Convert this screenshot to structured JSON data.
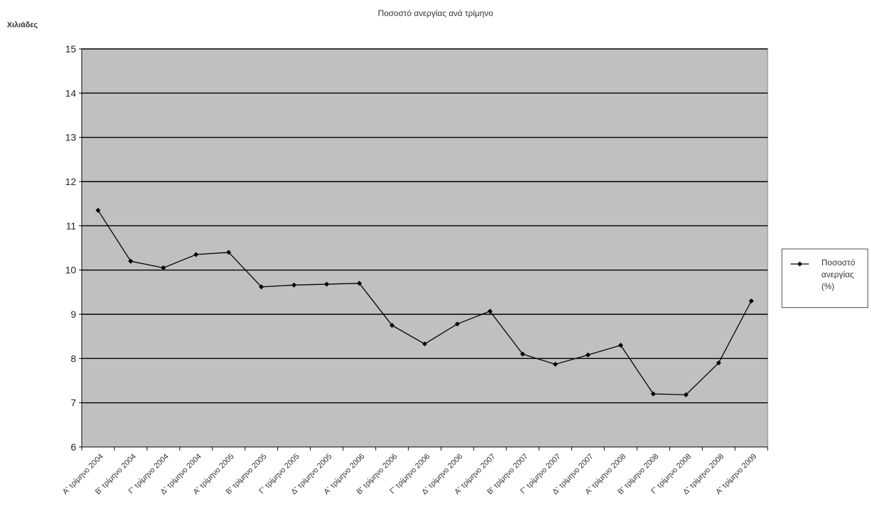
{
  "chart_data": {
    "type": "line",
    "title": "Ποσοστό ανεργίας ανά τρίμηνο",
    "ylabel": "Χιλιάδες",
    "xlabel": "",
    "ylim": [
      6,
      15
    ],
    "yticks": [
      6,
      7,
      8,
      9,
      10,
      11,
      12,
      13,
      14,
      15
    ],
    "grid": true,
    "legend_position": "right",
    "colors": {
      "plot_background": "#c0c0c0",
      "gridline": "#000000",
      "series_line": "#000000"
    },
    "categories": [
      "Α' τρίμηνο 2004",
      "Β' τρίμηνο 2004",
      "Γ' τρίμηνο 2004",
      "Δ' τρίμηνο 2004",
      "Α' τρίμηνο 2005",
      "Β' τρίμηνο 2005",
      "Γ' τρίμηνο 2005",
      "Δ' τρίμηνο 2005",
      "Α' τρίμηνο 2006",
      "Β' τρίμηνο 2006",
      "Γ' τρίμηνο 2006",
      "Δ' τρίμηνο 2006",
      "Α' τρίμηνο 2007",
      "Β' τρίμηνο 2007",
      "Γ' τρίμηνο 2007",
      "Δ' τρίμηνο 2007",
      "Α' τρίμηνο 2008",
      "Β' τρίμηνο 2008",
      "Γ' τρίμηνο 2008",
      "Δ' τρίμηνο 2008",
      "Α' τρίμηνο 2009"
    ],
    "series": [
      {
        "name": "Ποσοστό ανεργίας (%)",
        "values": [
          11.35,
          10.2,
          10.05,
          10.35,
          10.4,
          9.62,
          9.66,
          9.68,
          9.7,
          8.75,
          8.33,
          8.78,
          9.07,
          8.1,
          7.87,
          8.08,
          8.3,
          7.2,
          7.18,
          7.9,
          9.3
        ]
      }
    ]
  }
}
